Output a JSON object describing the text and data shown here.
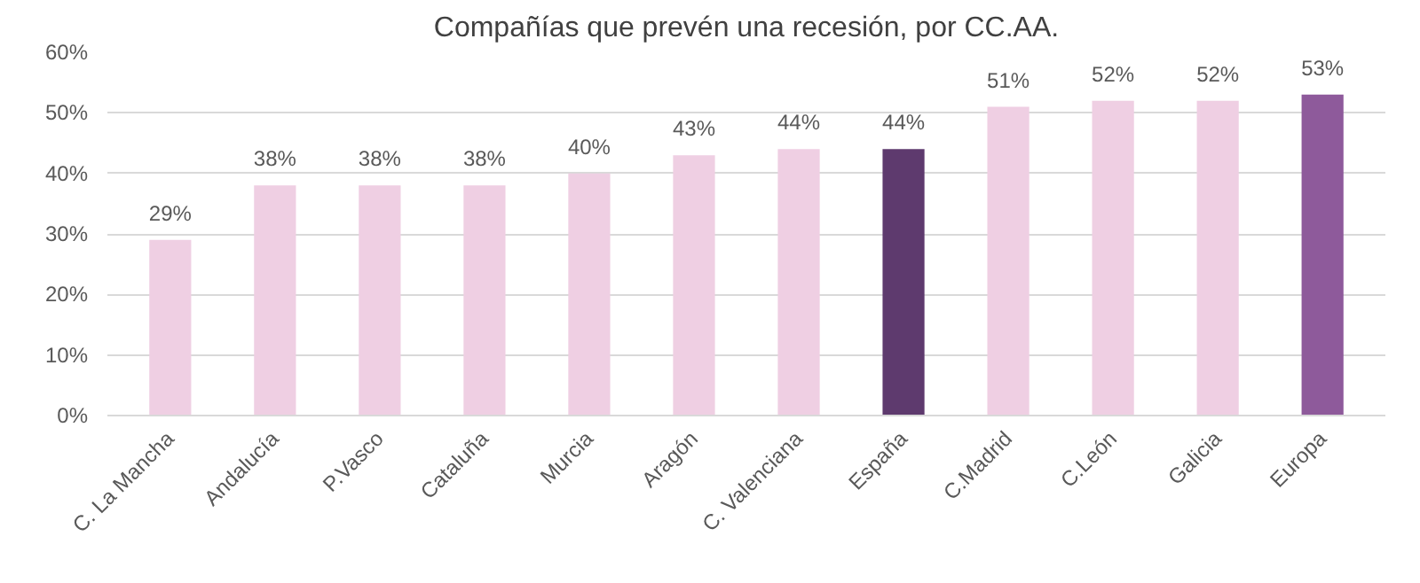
{
  "chart_data": {
    "type": "bar",
    "title": "Compañías que prevén una recesión, por CC.AA.",
    "categories": [
      "C. La Mancha",
      "Andalucía",
      "P.Vasco",
      "Cataluña",
      "Murcia",
      "Aragón",
      "C. Valenciana",
      "España",
      "C.Madrid",
      "C.León",
      "Galicia",
      "Europa"
    ],
    "values": [
      29,
      38,
      38,
      38,
      40,
      43,
      44,
      44,
      51,
      52,
      52,
      53
    ],
    "colors": [
      "#efcfe3",
      "#efcfe3",
      "#efcfe3",
      "#efcfe3",
      "#efcfe3",
      "#efcfe3",
      "#efcfe3",
      "#5e3a6e",
      "#efcfe3",
      "#efcfe3",
      "#efcfe3",
      "#8e5a9b"
    ],
    "value_labels": [
      "29%",
      "38%",
      "38%",
      "38%",
      "40%",
      "43%",
      "44%",
      "44%",
      "51%",
      "52%",
      "52%",
      "53%"
    ],
    "ylim": [
      0,
      60
    ],
    "yticks": [
      {
        "value": 0,
        "label": "0%"
      },
      {
        "value": 10,
        "label": "10%"
      },
      {
        "value": 20,
        "label": "20%"
      },
      {
        "value": 30,
        "label": "30%"
      },
      {
        "value": 40,
        "label": "40%"
      },
      {
        "value": 50,
        "label": "50%"
      },
      {
        "value": 60,
        "label": "60%"
      }
    ],
    "grid": "y"
  }
}
